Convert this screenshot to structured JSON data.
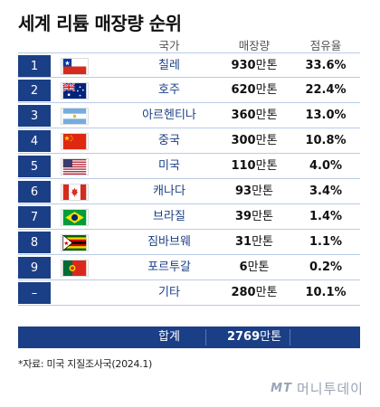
{
  "title": "세계 리튬 매장량 순위",
  "headers": {
    "country": "국가",
    "reserve": "매장량",
    "share": "점유율"
  },
  "chart_data": {
    "type": "table",
    "columns": [
      "국가",
      "매장량",
      "점유율"
    ],
    "rows": [
      {
        "rank": "1",
        "flag": "chile-flag",
        "country": "칠레",
        "reserve_value": "930",
        "reserve_unit": "만톤",
        "share": "33.6%"
      },
      {
        "rank": "2",
        "flag": "australia-flag",
        "country": "호주",
        "reserve_value": "620",
        "reserve_unit": "만톤",
        "share": "22.4%"
      },
      {
        "rank": "3",
        "flag": "argentina-flag",
        "country": "아르헨티나",
        "reserve_value": "360",
        "reserve_unit": "만톤",
        "share": "13.0%"
      },
      {
        "rank": "4",
        "flag": "china-flag",
        "country": "중국",
        "reserve_value": "300",
        "reserve_unit": "만톤",
        "share": "10.8%"
      },
      {
        "rank": "5",
        "flag": "usa-flag",
        "country": "미국",
        "reserve_value": "110",
        "reserve_unit": "만톤",
        "share": "4.0%"
      },
      {
        "rank": "6",
        "flag": "canada-flag",
        "country": "캐나다",
        "reserve_value": "93",
        "reserve_unit": "만톤",
        "share": "3.4%"
      },
      {
        "rank": "7",
        "flag": "brazil-flag",
        "country": "브라질",
        "reserve_value": "39",
        "reserve_unit": "만톤",
        "share": "1.4%"
      },
      {
        "rank": "8",
        "flag": "zimbabwe-flag",
        "country": "짐바브웨",
        "reserve_value": "31",
        "reserve_unit": "만톤",
        "share": "1.1%"
      },
      {
        "rank": "9",
        "flag": "portugal-flag",
        "country": "포르투갈",
        "reserve_value": "6",
        "reserve_unit": "만톤",
        "share": "0.2%"
      },
      {
        "rank": "–",
        "flag": "",
        "country": "기타",
        "reserve_value": "280",
        "reserve_unit": "만톤",
        "share": "10.1%"
      }
    ],
    "total": {
      "label": "합계",
      "reserve_value": "2769",
      "reserve_unit": "만톤"
    }
  },
  "source": "*자료: 미국 지질조사국(2024.1)",
  "logo": {
    "mt": "MT",
    "name": "머니투데이"
  },
  "colors": {
    "accent": "#1b3f86",
    "row_line": "#b9cbe8",
    "country_text": "#1b3f86"
  }
}
